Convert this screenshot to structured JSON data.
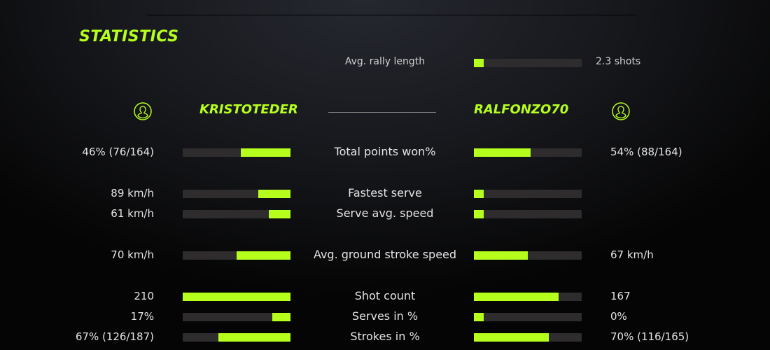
{
  "title": "STATISTICS",
  "accent": "#b6ff1c",
  "rally": {
    "label": "Avg. rally length",
    "value": "2.3 shots",
    "fill": 0.09
  },
  "players": {
    "left": {
      "name": "KRISTOTEDER",
      "icon": "user-circle-icon"
    },
    "right": {
      "name": "RALFONZO70",
      "icon": "user-circle-icon"
    }
  },
  "stats": [
    {
      "label": "Total points won%",
      "left": "46% (76/164)",
      "right": "54% (88/164)",
      "left_fill": 0.46,
      "right_fill": 0.53
    },
    {
      "label": "Fastest serve",
      "left": "89 km/h",
      "right": "",
      "left_fill": 0.3,
      "right_fill": 0.09
    },
    {
      "label": "Serve avg. speed",
      "left": "61 km/h",
      "right": "",
      "left_fill": 0.2,
      "right_fill": 0.09
    },
    {
      "label": "Avg. ground stroke speed",
      "left": "70 km/h",
      "right": "67 km/h",
      "left_fill": 0.5,
      "right_fill": 0.5
    },
    {
      "label": "Shot count",
      "left": "210",
      "right": "167",
      "left_fill": 1.0,
      "right_fill": 0.79
    },
    {
      "label": "Serves in %",
      "left": "17%",
      "right": "0%",
      "left_fill": 0.17,
      "right_fill": 0.09
    },
    {
      "label": "Strokes in %",
      "left": "67% (126/187)",
      "right": "70% (116/165)",
      "left_fill": 0.67,
      "right_fill": 0.7
    }
  ]
}
